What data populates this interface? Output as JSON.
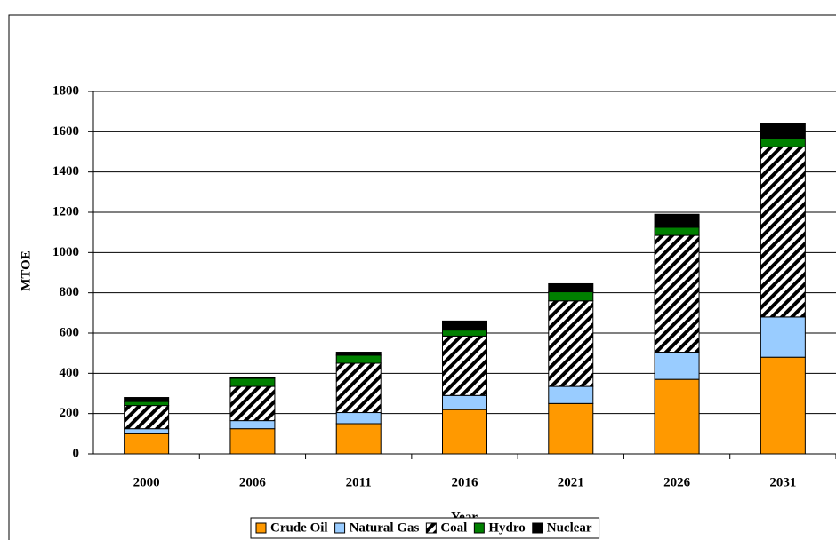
{
  "chart_data": {
    "type": "stacked_bar",
    "x_label": "Year",
    "y_label": "MTOE",
    "categories": [
      "2000",
      "2006",
      "2011",
      "2016",
      "2021",
      "2026",
      "2031"
    ],
    "series": [
      {
        "name": "Crude Oil",
        "color": "#ff9900",
        "values": [
          100,
          125,
          150,
          220,
          250,
          370,
          480
        ]
      },
      {
        "name": "Natural Gas",
        "color": "#99ccff",
        "values": [
          25,
          40,
          55,
          70,
          85,
          135,
          200
        ]
      },
      {
        "name": "Coal",
        "color": "#000000",
        "pattern": "hatch",
        "values": [
          115,
          170,
          245,
          295,
          425,
          580,
          845
        ]
      },
      {
        "name": "Hydro",
        "color": "#008000",
        "values": [
          20,
          40,
          40,
          30,
          45,
          40,
          40
        ]
      },
      {
        "name": "Nuclear",
        "color": "#000000",
        "values": [
          20,
          5,
          15,
          45,
          40,
          65,
          75
        ]
      }
    ],
    "ylim": [
      0,
      1800
    ],
    "yticks": [
      0,
      200,
      400,
      600,
      800,
      1000,
      1200,
      1400,
      1600,
      1800
    ],
    "grid": true,
    "legend": "bottom"
  }
}
